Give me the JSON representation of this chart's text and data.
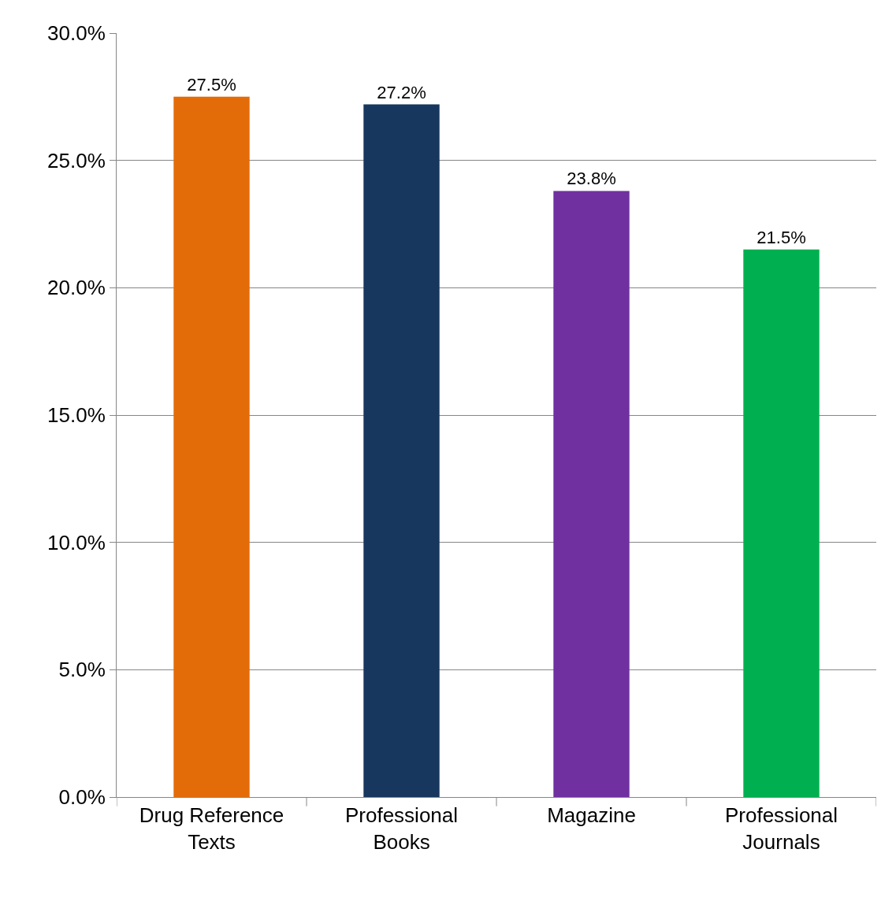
{
  "chart_data": {
    "type": "bar",
    "categories": [
      "Drug Reference Texts",
      "Professional Books",
      "Magazine",
      "Professional Journals"
    ],
    "values": [
      27.5,
      27.2,
      23.8,
      21.5
    ],
    "colors": [
      "#e36c09",
      "#17375e",
      "#7030a0",
      "#00b050"
    ],
    "value_labels": [
      "27.5%",
      "27.2%",
      "23.8%",
      "21.5%"
    ],
    "ylim": [
      0,
      30
    ],
    "yticks": [
      {
        "value": 0,
        "label": "0.0%"
      },
      {
        "value": 5,
        "label": "5.0%"
      },
      {
        "value": 10,
        "label": "10.0%"
      },
      {
        "value": 15,
        "label": "15.0%"
      },
      {
        "value": 20,
        "label": "20.0%"
      },
      {
        "value": 25,
        "label": "25.0%"
      },
      {
        "value": 30,
        "label": "30.0%"
      }
    ],
    "grid": "y",
    "legend": false
  }
}
